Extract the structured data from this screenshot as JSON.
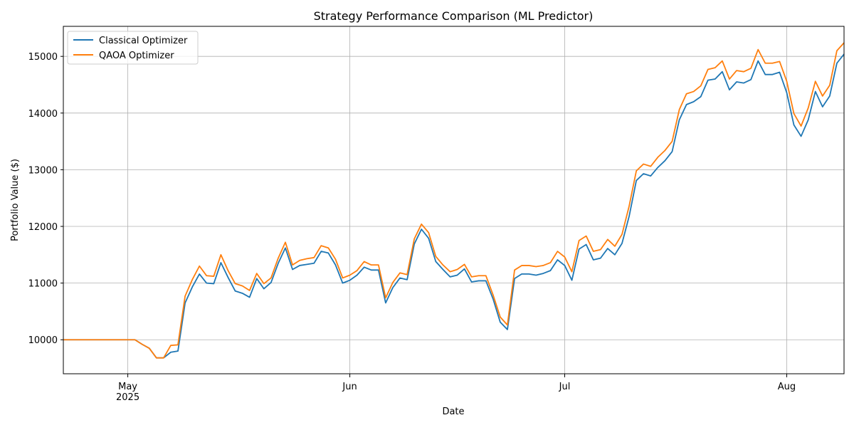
{
  "chart_data": {
    "type": "line",
    "title": "Strategy Performance Comparison (ML Predictor)",
    "xlabel": "Date",
    "ylabel": "Portfolio Value ($)",
    "categories": [
      null,
      null,
      null,
      null,
      null,
      null,
      null,
      null,
      null,
      "May\n2025",
      null,
      null,
      null,
      null,
      null,
      null,
      null,
      null,
      null,
      null,
      null,
      null,
      null,
      null,
      null,
      null,
      null,
      null,
      null,
      null,
      null,
      null,
      null,
      null,
      null,
      null,
      null,
      null,
      null,
      null,
      "Jun",
      null,
      null,
      null,
      null,
      null,
      null,
      null,
      null,
      null,
      null,
      null,
      null,
      null,
      null,
      null,
      null,
      null,
      null,
      null,
      null,
      null,
      null,
      null,
      null,
      null,
      null,
      null,
      null,
      null,
      "Jul",
      null,
      null,
      null,
      null,
      null,
      null,
      null,
      null,
      null,
      null,
      null,
      null,
      null,
      null,
      null,
      null,
      null,
      null,
      null,
      null,
      null,
      null,
      null,
      null,
      null,
      null,
      null,
      null,
      null,
      null,
      "Aug",
      null,
      null,
      null,
      null,
      null,
      null,
      null,
      null
    ],
    "series": [
      {
        "name": "Classical Optimizer",
        "color": "#1f77b4",
        "values": [
          10000,
          10000,
          10000,
          10000,
          10000,
          10000,
          10000,
          10000,
          10000,
          10000,
          10000,
          9920,
          9850,
          9680,
          9680,
          9780,
          9800,
          10650,
          10930,
          11160,
          11000,
          10990,
          11360,
          11100,
          10860,
          10820,
          10750,
          11080,
          10900,
          11010,
          11350,
          11620,
          11240,
          11310,
          11330,
          11350,
          11560,
          11530,
          11320,
          11000,
          11050,
          11140,
          11280,
          11230,
          11230,
          10650,
          10920,
          11090,
          11060,
          11690,
          11950,
          11790,
          11380,
          11240,
          11110,
          11140,
          11250,
          11020,
          11040,
          11040,
          10720,
          10310,
          10180,
          11080,
          11160,
          11160,
          11140,
          11170,
          11220,
          11410,
          11310,
          11050,
          11600,
          11680,
          11410,
          11440,
          11610,
          11500,
          11700,
          12180,
          12810,
          12930,
          12890,
          13040,
          13160,
          13320,
          13880,
          14150,
          14200,
          14290,
          14580,
          14600,
          14730,
          14410,
          14550,
          14530,
          14590,
          14920,
          14680,
          14680,
          14720,
          14360,
          13790,
          13590,
          13880,
          14380,
          14110,
          14300,
          14880,
          15040
        ]
      },
      {
        "name": "QAOA Optimizer",
        "color": "#ff7f0e",
        "values": [
          10000,
          10000,
          10000,
          10000,
          10000,
          10000,
          10000,
          10000,
          10000,
          10000,
          10000,
          9920,
          9850,
          9680,
          9680,
          9900,
          9910,
          10770,
          11060,
          11300,
          11130,
          11120,
          11500,
          11220,
          10990,
          10950,
          10870,
          11170,
          10990,
          11090,
          11440,
          11720,
          11320,
          11400,
          11430,
          11450,
          11660,
          11620,
          11420,
          11090,
          11140,
          11220,
          11380,
          11320,
          11320,
          10740,
          11010,
          11180,
          11150,
          11780,
          12040,
          11890,
          11470,
          11320,
          11200,
          11240,
          11330,
          11110,
          11130,
          11130,
          10790,
          10400,
          10260,
          11230,
          11310,
          11310,
          11290,
          11310,
          11360,
          11560,
          11460,
          11200,
          11750,
          11830,
          11560,
          11590,
          11770,
          11650,
          11860,
          12360,
          12980,
          13100,
          13060,
          13220,
          13340,
          13500,
          14060,
          14340,
          14380,
          14480,
          14770,
          14800,
          14920,
          14600,
          14750,
          14730,
          14790,
          15120,
          14880,
          14880,
          14910,
          14560,
          13990,
          13770,
          14090,
          14560,
          14300,
          14490,
          15100,
          15240
        ]
      }
    ],
    "ylim": [
      9400,
      15530
    ],
    "yticks": [
      10000,
      11000,
      12000,
      13000,
      14000,
      15000
    ],
    "grid": true,
    "legend": "upper-left"
  }
}
